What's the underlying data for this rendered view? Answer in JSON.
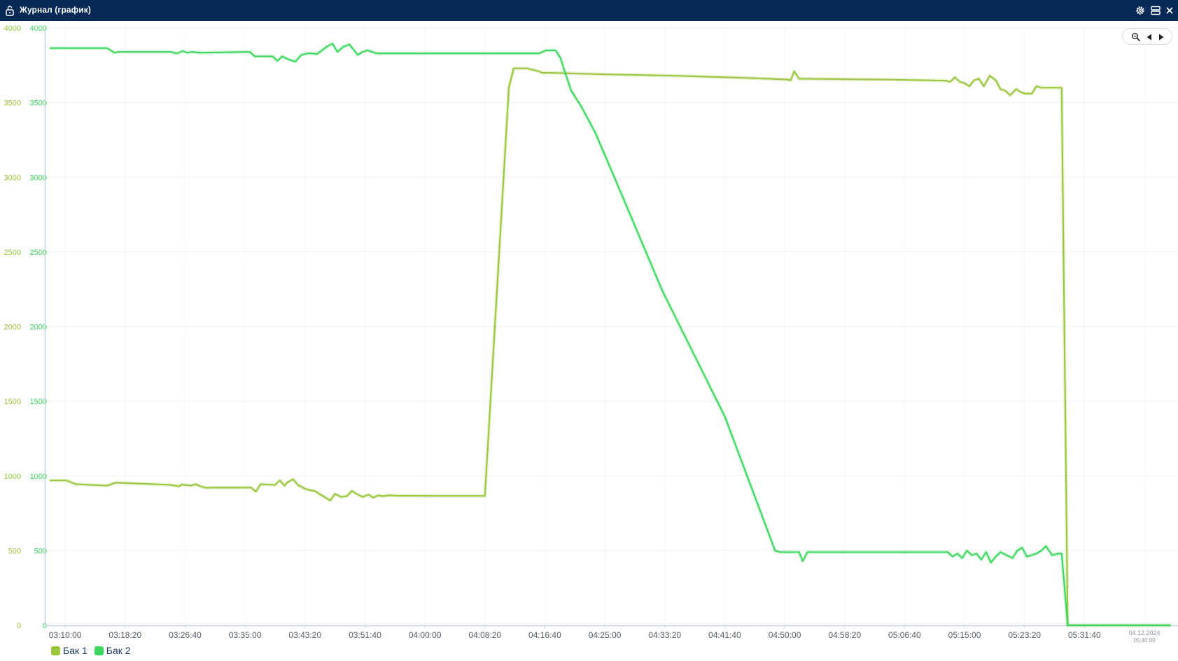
{
  "window": {
    "title": "Журнал (график)",
    "icons": {
      "lock": "lock-icon",
      "settings": "gear-icon",
      "layout": "layout-icon",
      "close": "close-icon"
    }
  },
  "zoom_controls": {
    "zoom": "zoom-icon",
    "prev": "arrow-left-icon",
    "next": "arrow-right-icon"
  },
  "colors": {
    "tank1": "#9bc53d",
    "tank2": "#3ed660",
    "titlebar": "#062955",
    "axis": "#c8d3e0",
    "ticks_x": "#555e6b"
  },
  "legend": [
    {
      "name": "Бак 1",
      "color": "#9bc53d"
    },
    {
      "name": "Бак 2",
      "color": "#3ed660"
    }
  ],
  "chart_data": {
    "type": "line",
    "xlabel": "",
    "ylabel": "",
    "ylim": [
      0,
      4000
    ],
    "x_ticks": [
      "03:10:00",
      "03:18:20",
      "03:26:40",
      "03:35:00",
      "03:43:20",
      "03:51:40",
      "04:00:00",
      "04:08:20",
      "04:16:40",
      "04:25:00",
      "04:33:20",
      "04:41:40",
      "04:50:00",
      "04:58:20",
      "05:06:40",
      "05:15:00",
      "05:23:20",
      "05:31:40"
    ],
    "x_end_label": {
      "date": "04.12.2024",
      "time": "05:40:00"
    },
    "xlim": [
      "03:07:10",
      "05:44:40"
    ],
    "y_ticks_left": [
      0,
      500,
      1000,
      1500,
      2000,
      2500,
      3000,
      3500,
      4000
    ],
    "y_ticks_right": [
      0,
      500,
      1000,
      1500,
      2000,
      2500,
      3000,
      3500,
      4000
    ],
    "grid": true,
    "legend_position": "bottom-left",
    "series": [
      {
        "name": "Бак 1",
        "axis": "left",
        "x": [
          "03:07:50",
          "03:10:10",
          "03:11:30",
          "03:15:50",
          "03:17:00",
          "03:24:40",
          "03:25:50",
          "03:26:10",
          "03:27:30",
          "03:28:10",
          "03:28:50",
          "03:29:40",
          "03:30:20",
          "03:35:50",
          "03:36:30",
          "03:37:10",
          "03:39:10",
          "03:39:50",
          "03:40:30",
          "03:40:50",
          "03:41:40",
          "03:42:20",
          "03:43:20",
          "03:44:00",
          "03:44:40",
          "03:45:30",
          "03:46:50",
          "03:47:30",
          "03:48:20",
          "03:49:10",
          "03:49:50",
          "03:50:30",
          "03:51:20",
          "03:52:10",
          "03:52:50",
          "03:53:30",
          "03:54:10",
          "03:55:00",
          "03:56:10",
          "04:02:00",
          "04:07:50",
          "04:08:20",
          "04:11:40",
          "04:12:20",
          "04:14:10",
          "04:15:50",
          "04:16:20",
          "04:16:50",
          "04:17:40",
          "04:25:00",
          "04:35:00",
          "04:45:00",
          "04:50:20",
          "04:50:50",
          "04:51:20",
          "04:52:00",
          "05:03:20",
          "05:12:20",
          "05:13:00",
          "05:13:40",
          "05:14:20",
          "05:15:00",
          "05:15:40",
          "05:16:20",
          "05:17:00",
          "05:17:40",
          "05:18:30",
          "05:19:20",
          "05:20:00",
          "05:20:40",
          "05:21:20",
          "05:22:10",
          "05:22:50",
          "05:23:30",
          "05:24:20",
          "05:25:00",
          "05:25:40",
          "05:26:20",
          "05:28:30",
          "05:29:20",
          "05:43:40"
        ],
        "y": [
          970,
          970,
          945,
          935,
          955,
          940,
          930,
          942,
          935,
          945,
          930,
          920,
          922,
          922,
          895,
          945,
          940,
          970,
          935,
          955,
          978,
          940,
          915,
          905,
          900,
          875,
          835,
          880,
          860,
          865,
          900,
          880,
          860,
          875,
          855,
          870,
          865,
          870,
          868,
          866,
          866,
          866,
          3600,
          3730,
          3730,
          3710,
          3700,
          3700,
          3700,
          3690,
          3680,
          3665,
          3655,
          3650,
          3710,
          3660,
          3655,
          3648,
          3640,
          3670,
          3640,
          3630,
          3610,
          3650,
          3660,
          3610,
          3680,
          3650,
          3590,
          3580,
          3550,
          3590,
          3570,
          3560,
          3560,
          3610,
          3600,
          3600,
          3600,
          0,
          0
        ]
      },
      {
        "name": "Бак 2",
        "axis": "right",
        "x": [
          "03:07:50",
          "03:15:50",
          "03:16:50",
          "03:17:30",
          "03:24:40",
          "03:25:30",
          "03:26:20",
          "03:27:00",
          "03:27:40",
          "03:28:40",
          "03:35:40",
          "03:36:20",
          "03:38:50",
          "03:39:30",
          "03:40:10",
          "03:41:00",
          "03:42:00",
          "03:42:50",
          "03:43:40",
          "03:44:20",
          "03:45:00",
          "03:46:30",
          "03:47:10",
          "03:47:50",
          "03:48:40",
          "03:49:30",
          "03:50:40",
          "03:51:20",
          "03:52:00",
          "03:53:20",
          "03:54:00",
          "03:55:30",
          "04:08:00",
          "04:15:50",
          "04:16:50",
          "04:18:10",
          "04:18:50",
          "04:19:30",
          "04:20:20",
          "04:21:40",
          "04:23:40",
          "04:26:20",
          "04:33:00",
          "04:41:40",
          "04:48:40",
          "04:49:20",
          "04:50:40",
          "04:52:00",
          "04:52:30",
          "04:53:10",
          "05:03:00",
          "05:12:40",
          "05:13:20",
          "05:14:00",
          "05:14:40",
          "05:15:20",
          "05:16:00",
          "05:16:40",
          "05:17:20",
          "05:18:00",
          "05:18:40",
          "05:19:20",
          "05:20:00",
          "05:20:50",
          "05:21:40",
          "05:22:20",
          "05:23:00",
          "05:23:40",
          "05:24:20",
          "05:25:00",
          "05:25:40",
          "05:26:20",
          "05:27:10",
          "05:28:00",
          "05:28:30",
          "05:29:20",
          "05:43:40"
        ],
        "y": [
          3865,
          3865,
          3835,
          3840,
          3840,
          3830,
          3845,
          3835,
          3840,
          3835,
          3840,
          3810,
          3810,
          3780,
          3810,
          3790,
          3775,
          3820,
          3830,
          3830,
          3825,
          3880,
          3895,
          3840,
          3875,
          3890,
          3820,
          3840,
          3850,
          3830,
          3830,
          3830,
          3830,
          3830,
          3850,
          3850,
          3800,
          3700,
          3580,
          3480,
          3300,
          3000,
          2240,
          1400,
          500,
          490,
          490,
          490,
          430,
          490,
          490,
          490,
          460,
          480,
          450,
          500,
          470,
          480,
          440,
          490,
          420,
          460,
          490,
          470,
          450,
          500,
          520,
          460,
          470,
          480,
          500,
          530,
          470,
          480,
          480,
          0,
          0
        ]
      }
    ]
  }
}
